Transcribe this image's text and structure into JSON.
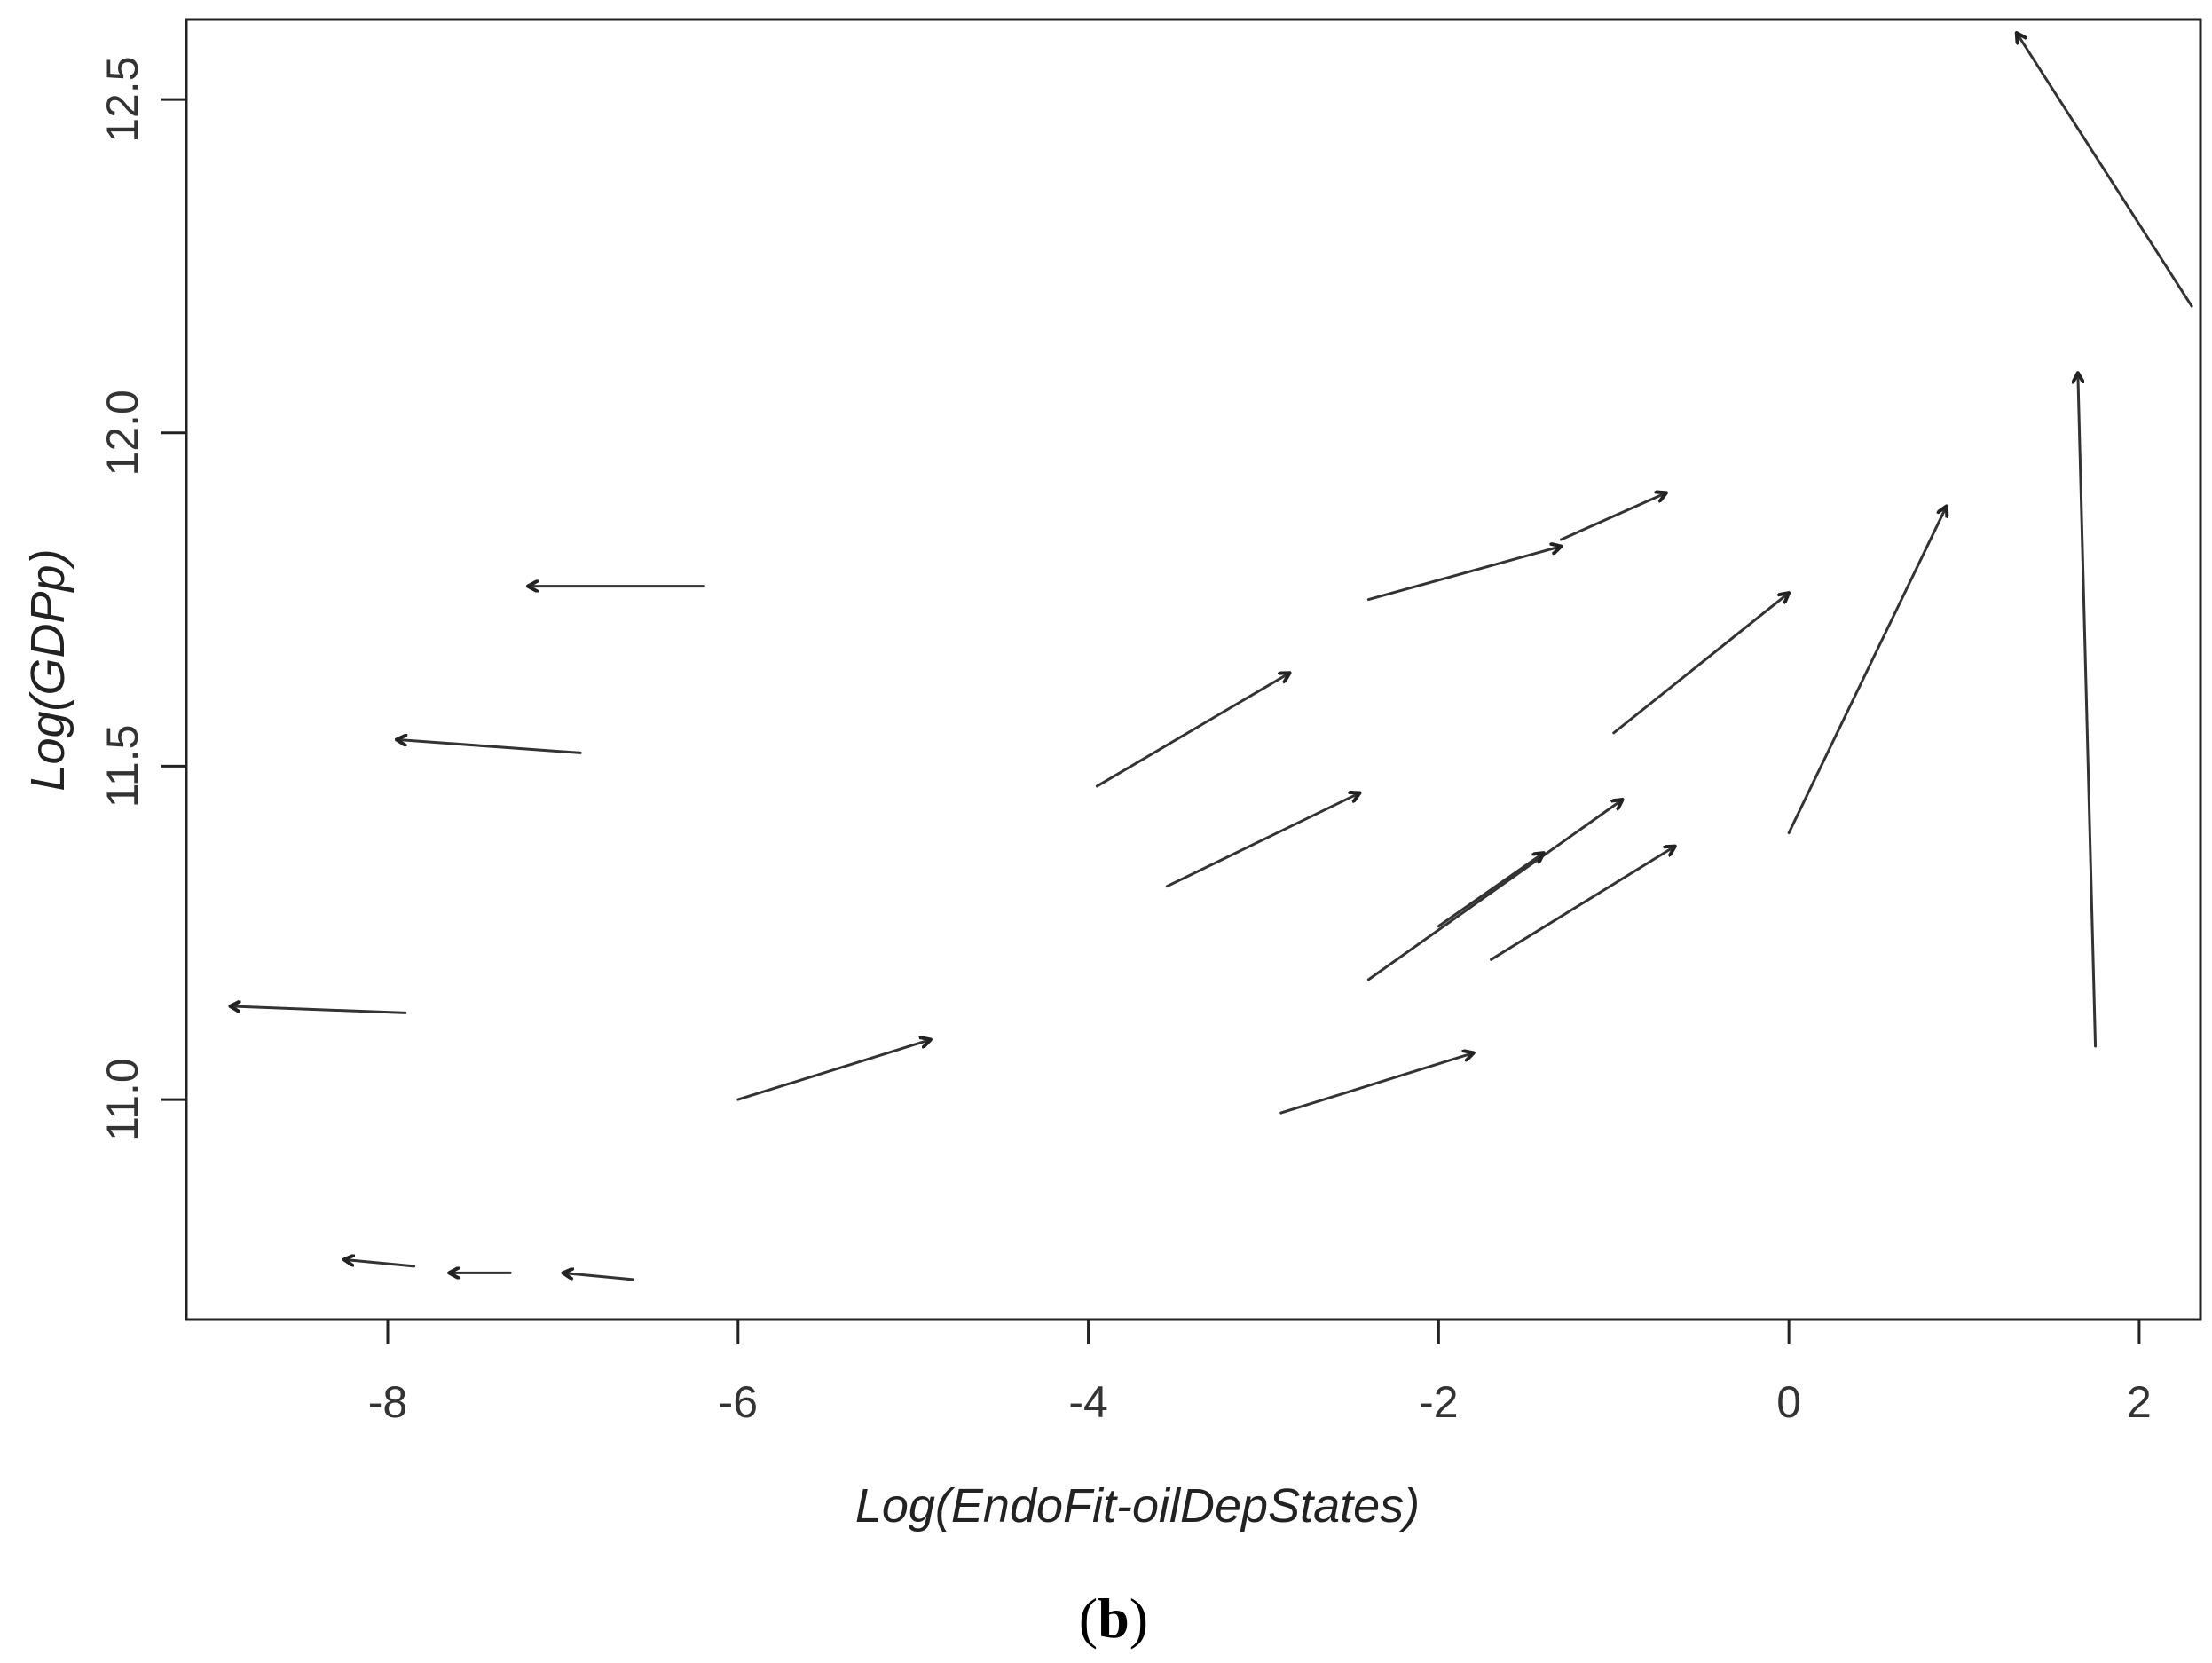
{
  "chart_data": {
    "type": "scatter",
    "mark": "arrow",
    "xlabel": "Log(EndoFit-oilDepStates)",
    "ylabel": "Log(GDPp)",
    "xlim": [
      -9.15,
      2.35
    ],
    "ylim": [
      10.67,
      12.62
    ],
    "x_ticks": [
      "-8",
      "-6",
      "-4",
      "-2",
      "0",
      "2"
    ],
    "y_ticks": [
      "11.0",
      "11.5",
      "12.0",
      "12.5"
    ],
    "x_tick_values": [
      -8,
      -6,
      -4,
      -2,
      0,
      2
    ],
    "y_tick_values": [
      11.0,
      11.5,
      12.0,
      12.5
    ],
    "grid": false,
    "legend": "none",
    "series": [
      {
        "arrows": [
          {
            "x0": -6.2,
            "y0": 11.77,
            "x1": -7.2,
            "y1": 11.77
          },
          {
            "x0": -6.9,
            "y0": 11.52,
            "x1": -7.95,
            "y1": 11.54
          },
          {
            "x0": -7.9,
            "y0": 11.13,
            "x1": -8.9,
            "y1": 11.14
          },
          {
            "x0": -7.3,
            "y0": 10.74,
            "x1": -7.65,
            "y1": 10.74
          },
          {
            "x0": -6.6,
            "y0": 10.73,
            "x1": -7.0,
            "y1": 10.74
          },
          {
            "x0": -7.85,
            "y0": 10.75,
            "x1": -8.25,
            "y1": 10.76
          },
          {
            "x0": -6.0,
            "y0": 11.0,
            "x1": -4.9,
            "y1": 11.09
          },
          {
            "x0": -3.95,
            "y0": 11.47,
            "x1": -2.85,
            "y1": 11.64
          },
          {
            "x0": -3.55,
            "y0": 11.32,
            "x1": -2.45,
            "y1": 11.46
          },
          {
            "x0": -2.9,
            "y0": 10.98,
            "x1": -1.8,
            "y1": 11.07
          },
          {
            "x0": -2.4,
            "y0": 11.75,
            "x1": -1.3,
            "y1": 11.83
          },
          {
            "x0": -1.3,
            "y0": 11.84,
            "x1": -0.7,
            "y1": 11.91
          },
          {
            "x0": -2.4,
            "y0": 11.18,
            "x1": -0.95,
            "y1": 11.45
          },
          {
            "x0": -2.0,
            "y0": 11.26,
            "x1": -1.4,
            "y1": 11.37
          },
          {
            "x0": -1.7,
            "y0": 11.21,
            "x1": -0.65,
            "y1": 11.38
          },
          {
            "x0": -1.0,
            "y0": 11.55,
            "x1": 0.0,
            "y1": 11.76
          },
          {
            "x0": 0.0,
            "y0": 11.4,
            "x1": 0.9,
            "y1": 11.89
          },
          {
            "x0": 1.75,
            "y0": 11.08,
            "x1": 1.65,
            "y1": 12.09
          },
          {
            "x0": 2.3,
            "y0": 12.19,
            "x1": 1.3,
            "y1": 12.6
          }
        ]
      }
    ]
  },
  "caption": {
    "open": "(",
    "letter": "b",
    "close": ")"
  }
}
